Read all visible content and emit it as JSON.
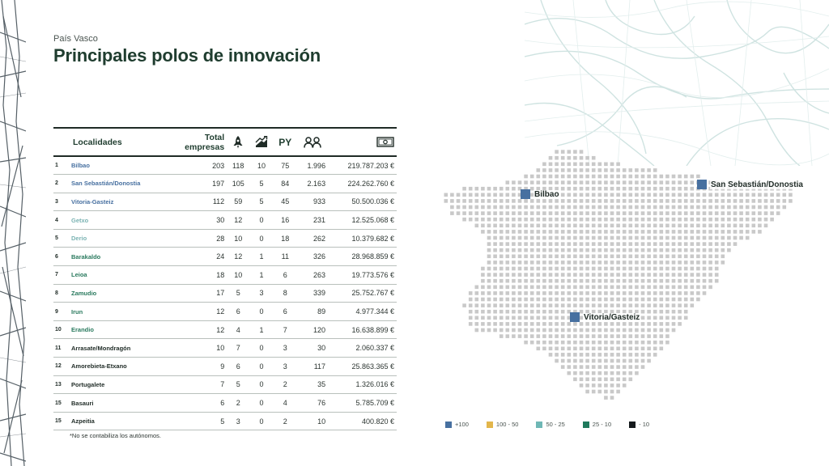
{
  "header": {
    "kicker": "País Vasco",
    "title": "Principales polos de innovación"
  },
  "table": {
    "headers": {
      "localidades": "Localidades",
      "total_line1": "Total",
      "total_line2": "empresas",
      "py": "PY"
    },
    "rows": [
      {
        "rank": "1",
        "name": "Bilbao",
        "color": "#4770a0",
        "total": "203",
        "startups": "118",
        "growth": "10",
        "py": "75",
        "people": "1.996",
        "money": "219.787.203 €"
      },
      {
        "rank": "2",
        "name": "San Sebastián/Donostia",
        "color": "#4770a0",
        "total": "197",
        "startups": "105",
        "growth": "5",
        "py": "84",
        "people": "2.163",
        "money": "224.262.760 €"
      },
      {
        "rank": "3",
        "name": "Vitoria-Gasteiz",
        "color": "#4770a0",
        "total": "112",
        "startups": "59",
        "growth": "5",
        "py": "45",
        "people": "933",
        "money": "50.500.036 €"
      },
      {
        "rank": "4",
        "name": "Getxo",
        "color": "#7bb3b3",
        "total": "30",
        "startups": "12",
        "growth": "0",
        "py": "16",
        "people": "231",
        "money": "12.525.068 €"
      },
      {
        "rank": "5",
        "name": "Derio",
        "color": "#7bb3b3",
        "total": "28",
        "startups": "10",
        "growth": "0",
        "py": "18",
        "people": "262",
        "money": "10.379.682 €"
      },
      {
        "rank": "6",
        "name": "Barakaldo",
        "color": "#2a7a5e",
        "total": "24",
        "startups": "12",
        "growth": "1",
        "py": "11",
        "people": "326",
        "money": "28.968.859 €"
      },
      {
        "rank": "7",
        "name": "Leioa",
        "color": "#2a7a5e",
        "total": "18",
        "startups": "10",
        "growth": "1",
        "py": "6",
        "people": "263",
        "money": "19.773.576 €"
      },
      {
        "rank": "8",
        "name": "Zamudio",
        "color": "#2a7a5e",
        "total": "17",
        "startups": "5",
        "growth": "3",
        "py": "8",
        "people": "339",
        "money": "25.752.767 €"
      },
      {
        "rank": "9",
        "name": "Irun",
        "color": "#2a7a5e",
        "total": "12",
        "startups": "6",
        "growth": "0",
        "py": "6",
        "people": "89",
        "money": "4.977.344 €"
      },
      {
        "rank": "10",
        "name": "Erandio",
        "color": "#2a7a5e",
        "total": "12",
        "startups": "4",
        "growth": "1",
        "py": "7",
        "people": "120",
        "money": "16.638.899 €"
      },
      {
        "rank": "11",
        "name": "Arrasate/Mondragón",
        "color": "#1f2b26",
        "total": "10",
        "startups": "7",
        "growth": "0",
        "py": "3",
        "people": "30",
        "money": "2.060.337 €"
      },
      {
        "rank": "12",
        "name": "Amorebieta-Etxano",
        "color": "#1f2b26",
        "total": "9",
        "startups": "6",
        "growth": "0",
        "py": "3",
        "people": "117",
        "money": "25.863.365 €"
      },
      {
        "rank": "13",
        "name": "Portugalete",
        "color": "#1f2b26",
        "total": "7",
        "startups": "5",
        "growth": "0",
        "py": "2",
        "people": "35",
        "money": "1.326.016 €"
      },
      {
        "rank": "15",
        "name": "Basauri",
        "color": "#1f2b26",
        "total": "6",
        "startups": "2",
        "growth": "0",
        "py": "4",
        "people": "76",
        "money": "5.785.709 €"
      },
      {
        "rank": "15",
        "name": "Azpeitia",
        "color": "#1f2b26",
        "total": "5",
        "startups": "3",
        "growth": "0",
        "py": "2",
        "people": "10",
        "money": "400.820 €"
      }
    ],
    "icons": {
      "startups": "rocket-icon",
      "growth": "growth-chart-icon",
      "people": "people-icon",
      "money": "banknote-icon"
    }
  },
  "footnote": "*No se contabiliza los autónomos.",
  "map": {
    "cities": [
      {
        "name": "Bilbao",
        "color": "#4770a0"
      },
      {
        "name": "San Sebastián/Donostia",
        "color": "#4770a0"
      },
      {
        "name": "Vitoria/Gasteiz",
        "color": "#4770a0"
      }
    ],
    "dot_color": "#c9c9c9"
  },
  "legend": [
    {
      "label": "+100",
      "color": "#4770a0"
    },
    {
      "label": "100 - 50",
      "color": "#e3b64b"
    },
    {
      "label": "50 - 25",
      "color": "#6fb7b5"
    },
    {
      "label": "25 - 10",
      "color": "#1f7a5c"
    },
    {
      "label": "- 10",
      "color": "#14191c"
    }
  ]
}
